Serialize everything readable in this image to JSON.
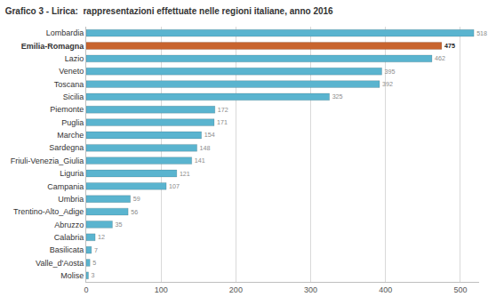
{
  "chart_data": {
    "type": "bar",
    "orientation": "horizontal",
    "title": "Grafico 3 - Lirica:  rappresentazioni effettuate nelle regioni italiane, anno 2016",
    "categories": [
      "Lombardia",
      "Emilia-Romagna",
      "Lazio",
      "Veneto",
      "Toscana",
      "Sicilia",
      "Piemonte",
      "Puglia",
      "Marche",
      "Sardegna",
      "Friuli-Venezia_Giulia",
      "Liguria",
      "Campania",
      "Umbria",
      "Trentino-Alto_Adige",
      "Abruzzo",
      "Calabria",
      "Basilicata",
      "Valle_d'Aosta",
      "Molise"
    ],
    "values": [
      518,
      475,
      462,
      395,
      392,
      325,
      172,
      171,
      154,
      148,
      141,
      121,
      107,
      59,
      56,
      35,
      12,
      7,
      5,
      3
    ],
    "colors": [
      "#5ab4cf",
      "#c8642e",
      "#5ab4cf",
      "#5ab4cf",
      "#5ab4cf",
      "#5ab4cf",
      "#5ab4cf",
      "#5ab4cf",
      "#5ab4cf",
      "#5ab4cf",
      "#5ab4cf",
      "#5ab4cf",
      "#5ab4cf",
      "#5ab4cf",
      "#5ab4cf",
      "#5ab4cf",
      "#5ab4cf",
      "#5ab4cf",
      "#5ab4cf",
      "#5ab4cf"
    ],
    "data_labels": true,
    "xlim": [
      0,
      525
    ],
    "xticks": [
      0,
      100,
      200,
      300,
      400,
      500
    ],
    "grid": true
  }
}
